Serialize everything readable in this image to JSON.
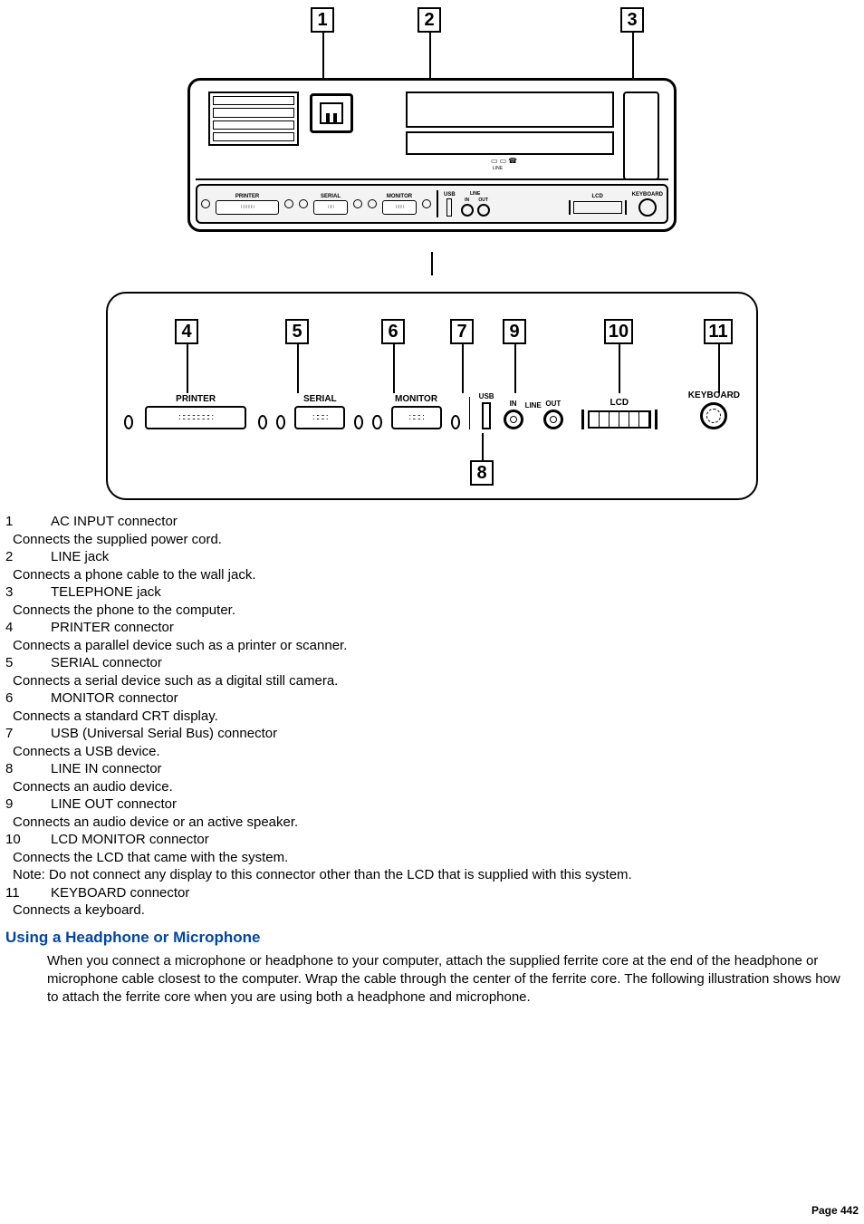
{
  "diagram": {
    "callouts_upper": [
      "1",
      "2",
      "3"
    ],
    "callouts_lower_top": [
      "4",
      "5",
      "6",
      "7",
      "9",
      "10",
      "11"
    ],
    "callouts_lower_bottom": [
      "8"
    ],
    "port_labels_small": {
      "printer": "PRINTER",
      "serial": "SERIAL",
      "monitor": "MONITOR",
      "usb": "USB",
      "line_in": "IN",
      "line_out": "OUT",
      "line": "LINE",
      "lcd": "LCD",
      "keyboard": "KEYBOARD"
    },
    "port_labels_big": {
      "printer": "PRINTER",
      "serial": "SERIAL",
      "monitor": "MONITOR",
      "usb": "USB",
      "line": "LINE",
      "in": "IN",
      "out": "OUT",
      "lcd": "LCD",
      "keyboard": "KEYBOARD"
    },
    "colors": {
      "stroke": "#000000",
      "bg": "#ffffff",
      "strip": "#f3f3f3"
    }
  },
  "connectors": [
    {
      "num": "1",
      "title": "AC INPUT connector",
      "desc": "Connects the supplied power cord."
    },
    {
      "num": "2",
      "title": "LINE jack",
      "desc": "Connects a phone cable to the wall jack."
    },
    {
      "num": "3",
      "title": "TELEPHONE jack",
      "desc": "Connects the phone to the computer."
    },
    {
      "num": "4",
      "title": "PRINTER connector",
      "desc": "Connects a parallel device such as a printer or scanner."
    },
    {
      "num": "5",
      "title": "SERIAL connector",
      "desc": "Connects a serial device such as a digital still camera."
    },
    {
      "num": "6",
      "title": "MONITOR connector",
      "desc": "Connects a standard CRT display."
    },
    {
      "num": "7",
      "title": "USB (Universal Serial Bus) connector",
      "desc": "Connects a USB device."
    },
    {
      "num": "8",
      "title": "LINE IN connector",
      "desc": "Connects an audio device."
    },
    {
      "num": "9",
      "title": "LINE OUT connector",
      "desc": "Connects an audio device or an active speaker."
    },
    {
      "num": "10",
      "title": "LCD MONITOR connector",
      "desc": "Connects the LCD that came with the system.",
      "note": "Note: Do not connect any display to this connector other than the LCD that is supplied with this system."
    },
    {
      "num": "11",
      "title": "KEYBOARD connector",
      "desc": "Connects a keyboard."
    }
  ],
  "section": {
    "heading": "Using a Headphone or Microphone",
    "paragraph": "When you connect a microphone or headphone to your computer, attach the supplied ferrite core at the end of the headphone or microphone cable closest to the computer. Wrap the cable through the center of the ferrite core. The following illustration shows how to attach the ferrite core when you are using both a headphone and microphone."
  },
  "footer": "Page 442"
}
